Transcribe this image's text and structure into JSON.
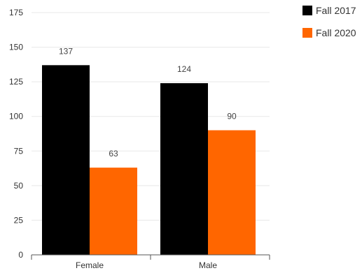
{
  "chart_data": {
    "type": "bar",
    "categories": [
      "Female",
      "Male"
    ],
    "series": [
      {
        "name": "Fall 2017",
        "values": [
          137,
          124
        ],
        "color": "#000000"
      },
      {
        "name": "Fall 2020",
        "values": [
          63,
          90
        ],
        "color": "#ff6600"
      }
    ],
    "data_labels": [
      [
        "137",
        "124"
      ],
      [
        "63",
        "90"
      ]
    ],
    "ylim": [
      0,
      175
    ],
    "yticks": [
      0,
      25,
      50,
      75,
      100,
      125,
      150,
      175
    ],
    "ytick_labels": [
      "0",
      "25",
      "50",
      "75",
      "100",
      "125",
      "150",
      "175"
    ],
    "grid": true,
    "legend_position": "top-right",
    "title": "",
    "xlabel": "",
    "ylabel": ""
  }
}
